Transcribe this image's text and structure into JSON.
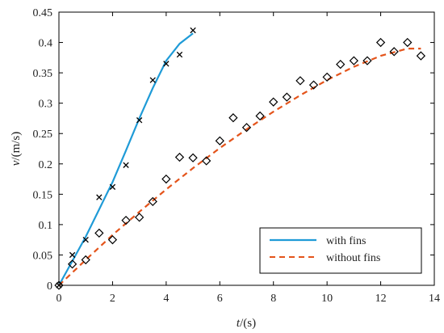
{
  "chart_data": {
    "type": "line",
    "xlabel_var": "t",
    "xlabel_unit": "/(s)",
    "ylabel_var": "v",
    "ylabel_unit": "/(m/s)",
    "xlim": [
      0,
      14
    ],
    "ylim": [
      0,
      0.45
    ],
    "xticks": [
      0,
      2,
      4,
      6,
      8,
      10,
      12,
      14
    ],
    "yticks": [
      0,
      0.05,
      0.1,
      0.15,
      0.2,
      0.25,
      0.3,
      0.35,
      0.4,
      0.45
    ],
    "grid": false,
    "legend_position": "bottom-right",
    "series": [
      {
        "name": "with fins",
        "style": "solid",
        "color": "#1f9bd7",
        "marker": "x",
        "fit_x": [
          0,
          0.5,
          1,
          1.5,
          2,
          2.5,
          3,
          3.5,
          4,
          4.5,
          5
        ],
        "fit_y": [
          0,
          0.04,
          0.08,
          0.125,
          0.17,
          0.222,
          0.275,
          0.325,
          0.37,
          0.398,
          0.415
        ],
        "points_x": [
          0,
          0.5,
          1,
          1.5,
          2,
          2.5,
          3,
          3.5,
          4,
          4.5,
          5
        ],
        "points_y": [
          0,
          0.05,
          0.075,
          0.145,
          0.162,
          0.198,
          0.272,
          0.338,
          0.365,
          0.38,
          0.42
        ]
      },
      {
        "name": "without fins",
        "style": "dashed",
        "color": "#e4541b",
        "marker": "diamond",
        "fit_x": [
          0,
          1,
          2,
          3,
          4,
          5,
          6,
          7,
          8,
          9,
          10,
          11,
          12,
          13,
          13.5
        ],
        "fit_y": [
          0,
          0.042,
          0.083,
          0.121,
          0.158,
          0.193,
          0.226,
          0.257,
          0.286,
          0.313,
          0.338,
          0.36,
          0.378,
          0.39,
          0.39
        ],
        "points_x": [
          0,
          0.5,
          1,
          1.5,
          2,
          2.5,
          3,
          3.5,
          4,
          4.5,
          5,
          5.5,
          6,
          6.5,
          7,
          7.5,
          8,
          8.5,
          9,
          9.5,
          10,
          10.5,
          11,
          11.5,
          12,
          12.5,
          13,
          13.5
        ],
        "points_y": [
          0,
          0.035,
          0.042,
          0.086,
          0.075,
          0.107,
          0.112,
          0.138,
          0.175,
          0.211,
          0.21,
          0.205,
          0.238,
          0.276,
          0.26,
          0.279,
          0.302,
          0.31,
          0.337,
          0.33,
          0.343,
          0.364,
          0.37,
          0.37,
          0.4,
          0.385,
          0.4,
          0.378
        ]
      }
    ]
  }
}
